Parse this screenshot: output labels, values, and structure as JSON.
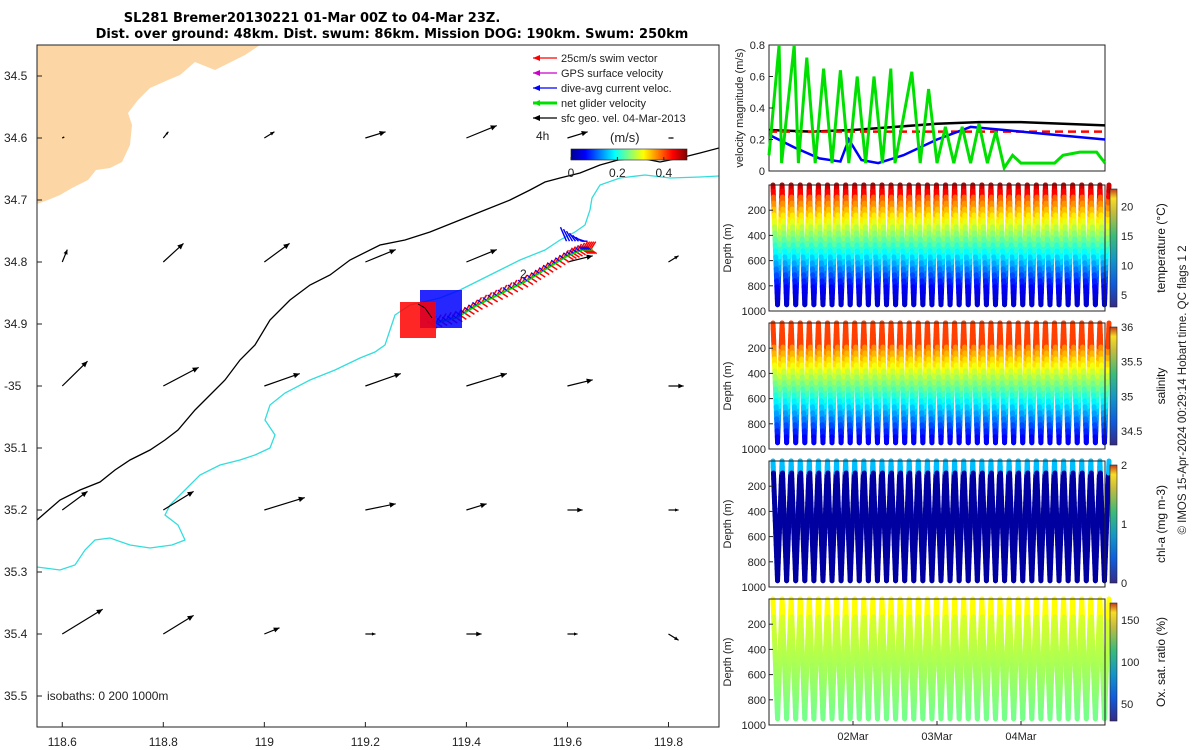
{
  "title": {
    "line1": "SL281 Bremer20130221 01-Mar 00Z to 04-Mar 23Z.",
    "line2": "Dist. over ground: 48km. Dist. swum: 86km. Mission DOG: 190km. Swum: 250km"
  },
  "footer_credit": "© IMOS 15-Apr-2024 00:29:14 Hobart time. QC flags 1  2",
  "colors": {
    "land": "#fcd6a4",
    "swim_vector": "#ff0000",
    "gps_surface": "#cc00cc",
    "dive_avg": "#0000ff",
    "net_glider": "#00e000",
    "sfc_geo": "#000000",
    "isobath_200": "#000000",
    "isobath_1000": "#33dddd"
  },
  "chart_data": [
    {
      "type": "map",
      "name": "glider track map",
      "xlim": [
        118.55,
        119.9
      ],
      "ylim": [
        -35.55,
        -34.45
      ],
      "x_ticks": [
        118.6,
        118.8,
        119,
        119.2,
        119.4,
        119.6,
        119.8
      ],
      "x_tick_labels": [
        "118.6",
        "118.8",
        "119",
        "119.2",
        "119.4",
        "119.6",
        "119.8"
      ],
      "y_ticks": [
        -34.5,
        -34.6,
        -34.7,
        -34.8,
        -34.9,
        -35,
        -35.1,
        -35.2,
        -35.3,
        -35.4,
        -35.5
      ],
      "y_tick_labels": [
        "34.5",
        "34.6",
        "34.7",
        "34.8",
        "34.9",
        "-35",
        "35.1",
        "35.2",
        "35.3",
        "35.4",
        "35.5"
      ],
      "legend": [
        {
          "label": "25cm/s swim vector",
          "color": "#ff0000"
        },
        {
          "label": "GPS surface velocity",
          "color": "#cc00cc"
        },
        {
          "label": "dive-avg current veloc.",
          "color": "#0000ff"
        },
        {
          "label": "net glider velocity",
          "color": "#00e000"
        },
        {
          "label": "sfc geo. vel. 04-Mar-2013",
          "color": "#000000"
        }
      ],
      "colorbar": {
        "title": "(m/s)",
        "prefix": "4h",
        "range": [
          0,
          0.5
        ],
        "ticks": [
          0,
          0.2,
          0.4
        ],
        "tick_labels": [
          "0",
          "0.2",
          "0.4"
        ]
      },
      "annotation": "2",
      "isobaths_label": "isobaths: 0   200  1000m",
      "track": [
        [
          119.33,
          -34.9
        ],
        [
          119.38,
          -34.89
        ],
        [
          119.42,
          -34.87
        ],
        [
          119.47,
          -34.85
        ],
        [
          119.52,
          -34.83
        ],
        [
          119.56,
          -34.81
        ],
        [
          119.6,
          -34.79
        ],
        [
          119.63,
          -34.78
        ],
        [
          119.65,
          -34.78
        ]
      ],
      "track_start_cluster": [
        119.35,
        -34.9
      ],
      "track_end_cluster": [
        119.61,
        -34.76
      ],
      "sfc_vectors": [
        [
          118.6,
          -34.6,
          0.0,
          0.0
        ],
        [
          118.8,
          -34.6,
          0.01,
          0.01
        ],
        [
          119.0,
          -34.6,
          0.02,
          0.01
        ],
        [
          119.2,
          -34.6,
          0.04,
          0.01
        ],
        [
          119.4,
          -34.6,
          0.06,
          0.02
        ],
        [
          119.6,
          -34.6,
          0.04,
          0.01
        ],
        [
          119.8,
          -34.6,
          0.01,
          0.0
        ],
        [
          118.6,
          -34.8,
          0.01,
          0.02
        ],
        [
          118.8,
          -34.8,
          0.04,
          0.03
        ],
        [
          119.0,
          -34.8,
          0.05,
          0.03
        ],
        [
          119.2,
          -34.8,
          0.06,
          0.02
        ],
        [
          119.4,
          -34.8,
          0.06,
          0.02
        ],
        [
          119.6,
          -34.8,
          0.05,
          0.01
        ],
        [
          119.8,
          -34.8,
          0.02,
          0.01
        ],
        [
          118.6,
          -35.0,
          0.05,
          0.04
        ],
        [
          118.8,
          -35.0,
          0.07,
          0.03
        ],
        [
          119.0,
          -35.0,
          0.07,
          0.02
        ],
        [
          119.2,
          -35.0,
          0.07,
          0.02
        ],
        [
          119.4,
          -35.0,
          0.08,
          0.02
        ],
        [
          119.6,
          -35.0,
          0.05,
          0.01
        ],
        [
          119.8,
          -35.0,
          0.03,
          0.0
        ],
        [
          118.6,
          -35.2,
          0.05,
          0.03
        ],
        [
          118.8,
          -35.2,
          0.06,
          0.03
        ],
        [
          119.0,
          -35.2,
          0.08,
          0.02
        ],
        [
          119.2,
          -35.2,
          0.06,
          0.01
        ],
        [
          119.4,
          -35.2,
          0.04,
          0.01
        ],
        [
          119.6,
          -35.2,
          0.03,
          0.0
        ],
        [
          119.8,
          -35.2,
          0.02,
          0.0
        ],
        [
          118.6,
          -35.4,
          0.08,
          0.04
        ],
        [
          118.8,
          -35.4,
          0.06,
          0.03
        ],
        [
          119.0,
          -35.4,
          0.03,
          0.01
        ],
        [
          119.2,
          -35.4,
          0.02,
          0.0
        ],
        [
          119.4,
          -35.4,
          0.03,
          0.0
        ],
        [
          119.6,
          -35.4,
          0.02,
          0.0
        ],
        [
          119.8,
          -35.4,
          0.02,
          -0.01
        ]
      ]
    },
    {
      "type": "line",
      "name": "velocity magnitude",
      "ylabel": "velocity magnitude (m/s)",
      "ylim": [
        0,
        0.8
      ],
      "y_ticks": [
        0,
        0.2,
        0.4,
        0.6,
        0.8
      ],
      "y_tick_labels": [
        "0",
        "0.2",
        "0.4",
        "0.6",
        "0.8"
      ],
      "xlim": [
        0,
        4
      ],
      "series": [
        {
          "name": "swim speed",
          "color": "#000000",
          "x": [
            0,
            0.5,
            1.0,
            1.5,
            2.0,
            2.5,
            3.0,
            3.5,
            4.0
          ],
          "values": [
            0.26,
            0.25,
            0.26,
            0.28,
            0.3,
            0.31,
            0.31,
            0.3,
            0.29
          ]
        },
        {
          "name": "target speed",
          "color": "#ff0000",
          "dashed": true,
          "x": [
            0,
            4
          ],
          "values": [
            0.25,
            0.25
          ]
        },
        {
          "name": "dive-avg current",
          "color": "#0000ff",
          "x": [
            0,
            0.3,
            0.6,
            0.85,
            0.95,
            1.1,
            1.3,
            1.6,
            2.0,
            2.4,
            2.8,
            3.2,
            3.6,
            4.0
          ],
          "values": [
            0.23,
            0.15,
            0.08,
            0.06,
            0.2,
            0.07,
            0.05,
            0.1,
            0.2,
            0.28,
            0.26,
            0.24,
            0.22,
            0.2
          ]
        },
        {
          "name": "net glider velocity",
          "color": "#00e000",
          "x": [
            0,
            0.12,
            0.15,
            0.3,
            0.35,
            0.45,
            0.55,
            0.65,
            0.75,
            0.85,
            0.95,
            1.05,
            1.15,
            1.25,
            1.35,
            1.45,
            1.5,
            1.7,
            1.8,
            1.9,
            2.0,
            2.1,
            2.2,
            2.3,
            2.4,
            2.5,
            2.6,
            2.7,
            2.8,
            2.9,
            3.0,
            3.2,
            3.4,
            3.5,
            3.7,
            3.9,
            4.0
          ],
          "values": [
            0.1,
            0.8,
            0.05,
            0.8,
            0.05,
            0.72,
            0.05,
            0.65,
            0.05,
            0.64,
            0.05,
            0.6,
            0.05,
            0.6,
            0.05,
            0.65,
            0.05,
            0.63,
            0.05,
            0.52,
            0.05,
            0.28,
            0.05,
            0.28,
            0.05,
            0.3,
            0.05,
            0.25,
            0.02,
            0.1,
            0.05,
            0.05,
            0.05,
            0.1,
            0.12,
            0.12,
            0.05
          ]
        }
      ]
    },
    {
      "type": "scatter",
      "name": "temperature section",
      "ylabel": "Depth (m)",
      "ylim": [
        1000,
        0
      ],
      "y_ticks": [
        200,
        400,
        600,
        800,
        1000
      ],
      "y_tick_labels": [
        "200",
        "400",
        "600",
        "800",
        "1000"
      ],
      "n_dives": 37,
      "max_depth": 950,
      "colorbar_label": "temperature (°C)",
      "colorbar_range": [
        3,
        23
      ],
      "colorbar_ticks": [
        5,
        10,
        15,
        20
      ],
      "colorbar_tick_labels": [
        "5",
        "10",
        "15",
        "20"
      ]
    },
    {
      "type": "scatter",
      "name": "salinity section",
      "ylabel": "Depth (m)",
      "ylim": [
        1000,
        0
      ],
      "y_ticks": [
        200,
        400,
        600,
        800,
        1000
      ],
      "y_tick_labels": [
        "200",
        "400",
        "600",
        "800",
        "1000"
      ],
      "n_dives": 37,
      "max_depth": 950,
      "colorbar_label": "salinity",
      "colorbar_range": [
        34.3,
        36
      ],
      "colorbar_ticks": [
        34.5,
        35,
        35.5,
        36
      ],
      "colorbar_tick_labels": [
        "34.5",
        "35",
        "35.5",
        "36"
      ]
    },
    {
      "type": "scatter",
      "name": "chlorophyll section",
      "ylabel": "Depth (m)",
      "ylim": [
        1000,
        0
      ],
      "y_ticks": [
        200,
        400,
        600,
        800,
        1000
      ],
      "y_tick_labels": [
        "200",
        "400",
        "600",
        "800",
        "1000"
      ],
      "n_dives": 37,
      "max_depth": 950,
      "colorbar_label": "chl-a (mg m-3)",
      "colorbar_range": [
        0,
        2
      ],
      "colorbar_ticks": [
        0,
        1,
        2
      ],
      "colorbar_tick_labels": [
        "0",
        "1",
        "2"
      ]
    },
    {
      "type": "scatter",
      "name": "oxygen section",
      "ylabel": "Depth (m)",
      "ylim": [
        1000,
        0
      ],
      "y_ticks": [
        200,
        400,
        600,
        800,
        1000
      ],
      "y_tick_labels": [
        "200",
        "400",
        "600",
        "800",
        "1000"
      ],
      "n_dives": 37,
      "max_depth": 950,
      "colorbar_label": "Ox. sat. ratio (%)",
      "colorbar_range": [
        30,
        170
      ],
      "colorbar_ticks": [
        50,
        100,
        150
      ],
      "colorbar_tick_labels": [
        "50",
        "100",
        "150"
      ],
      "x_tick_labels": [
        "02Mar",
        "03Mar",
        "04Mar"
      ]
    }
  ]
}
